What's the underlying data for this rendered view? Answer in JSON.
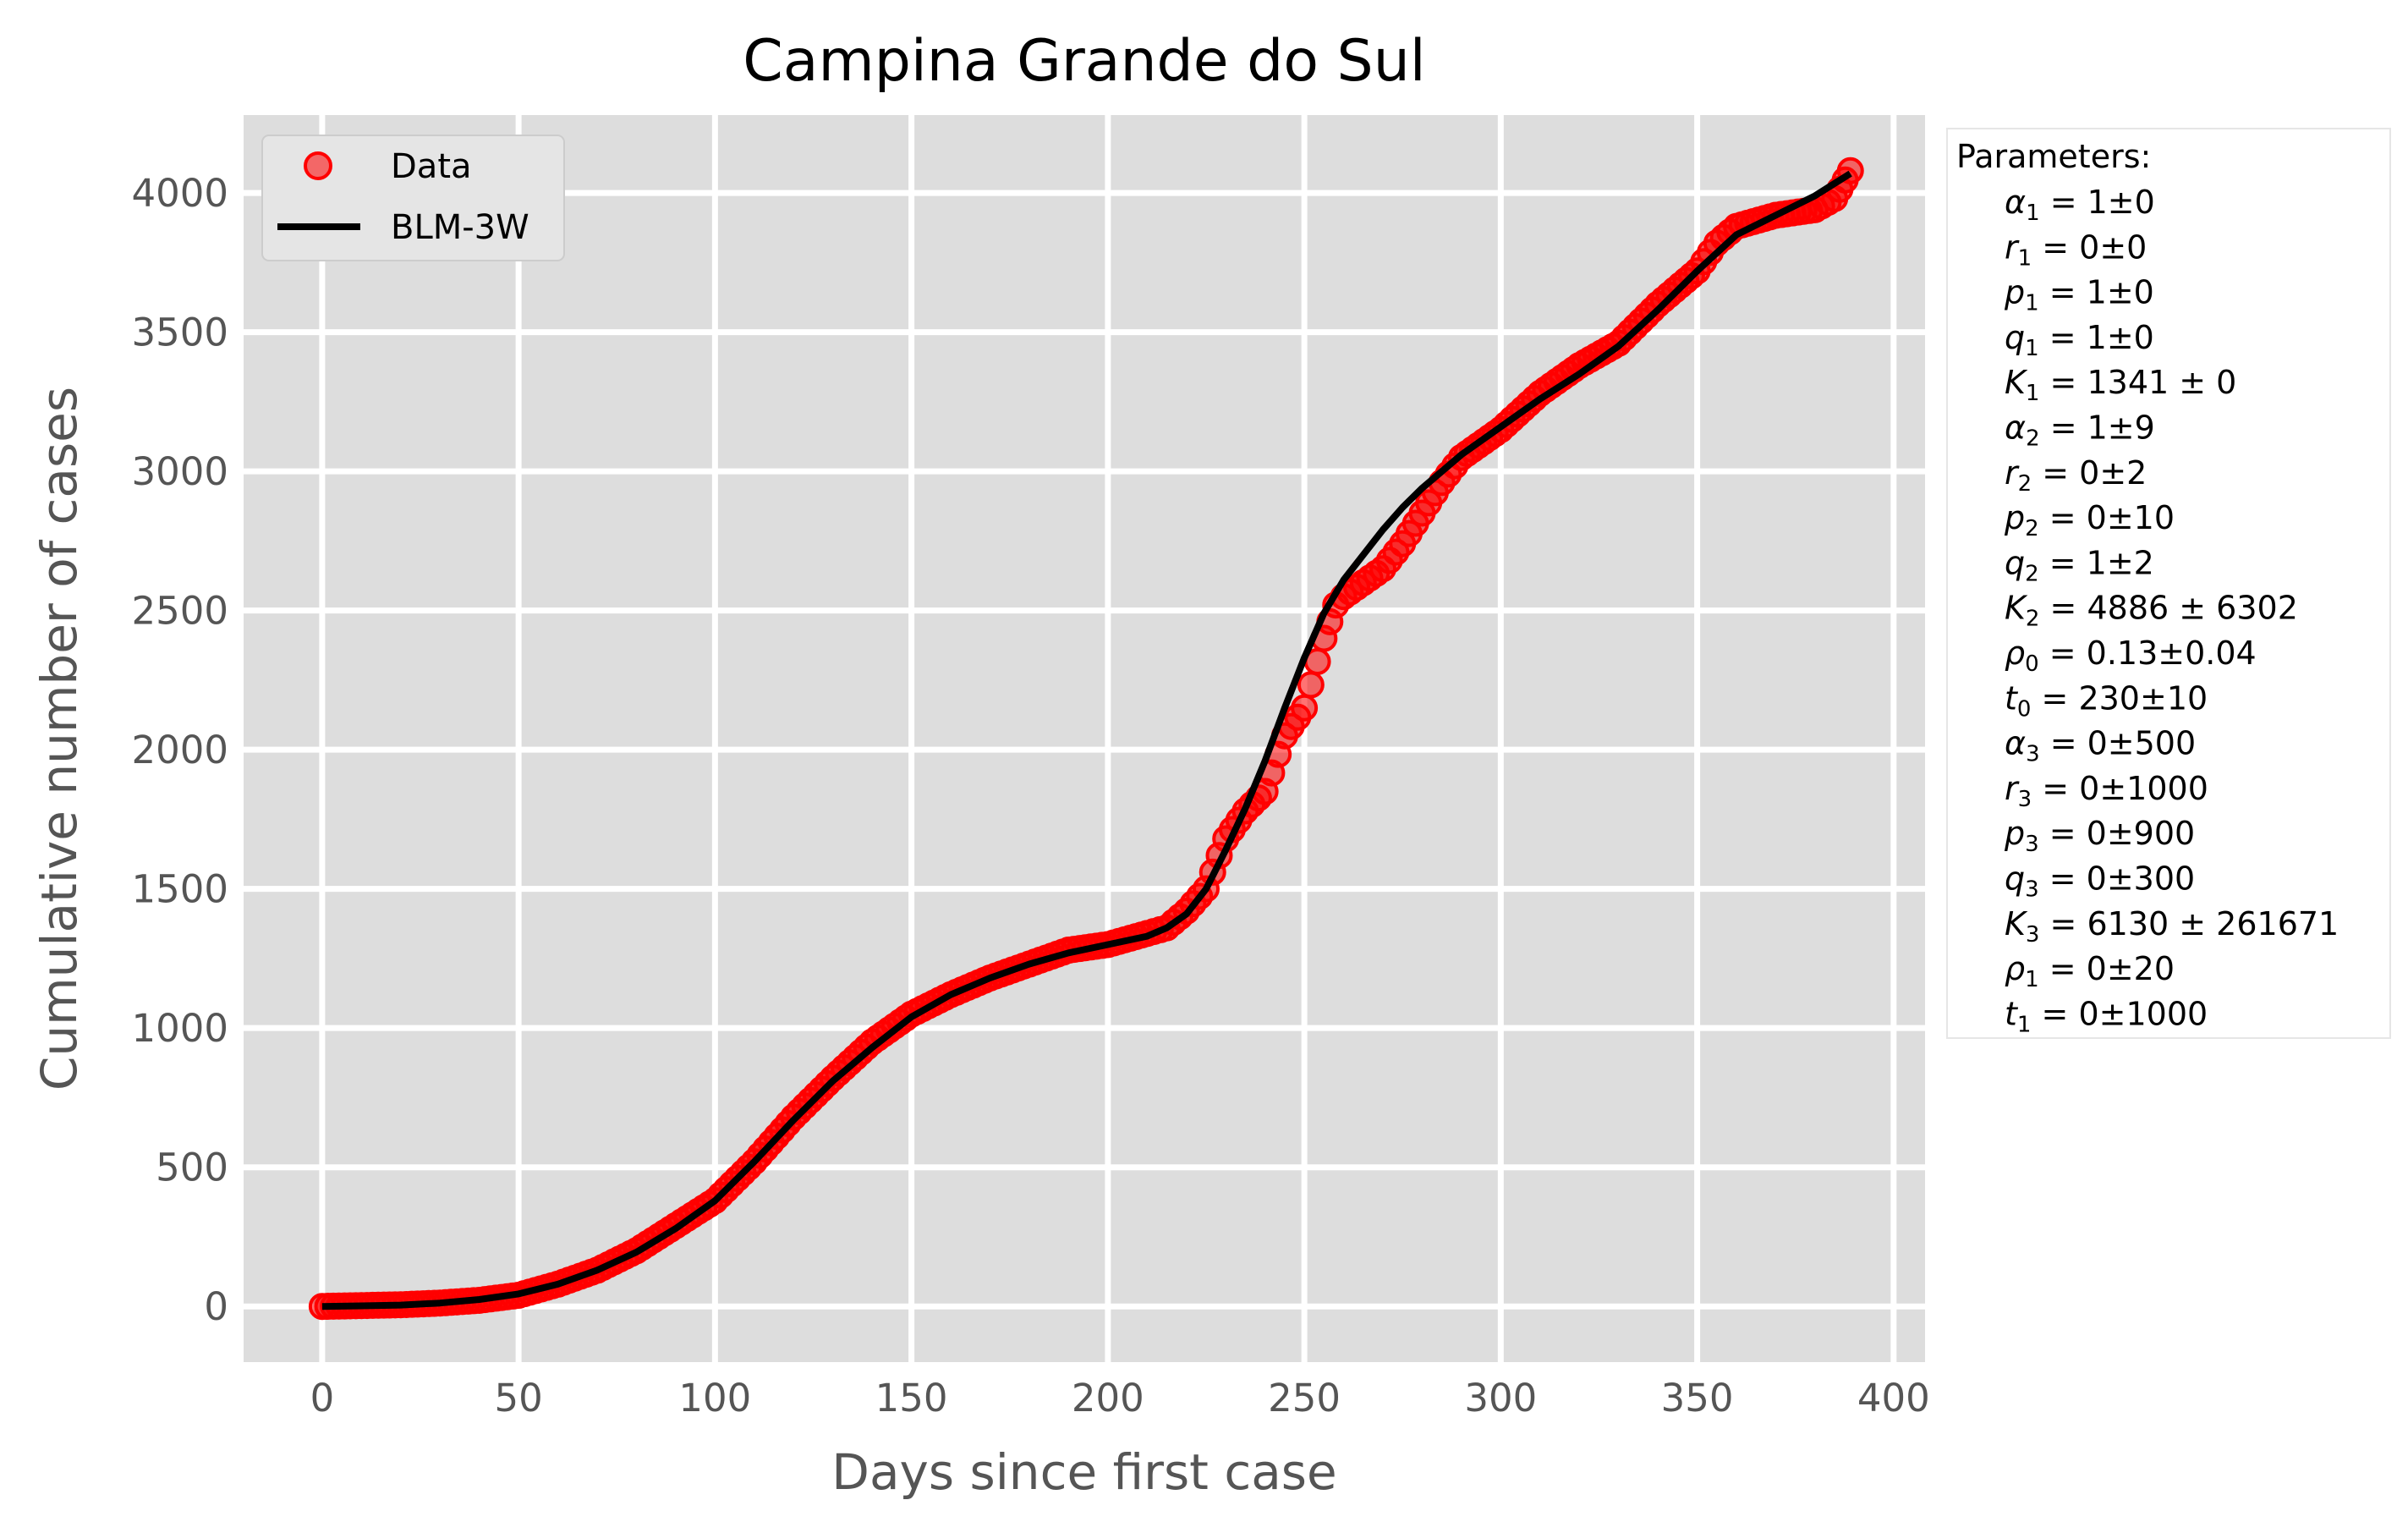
{
  "chart_data": {
    "type": "scatter",
    "title": "Campina Grande do Sul",
    "xlabel": "Days since first case",
    "ylabel": "Cumulative  number of cases",
    "xlim": [
      -20,
      408
    ],
    "ylim": [
      -200,
      4280
    ],
    "xticks": [
      0,
      50,
      100,
      150,
      200,
      250,
      300,
      350,
      400
    ],
    "yticks": [
      0,
      500,
      1000,
      1500,
      2000,
      2500,
      3000,
      3500,
      4000
    ],
    "grid": true,
    "legend": {
      "position": "top-left",
      "entries": [
        "Data",
        "BLM-3W"
      ]
    },
    "colors": {
      "data": "#ff0000",
      "fit": "#000000",
      "panel": "#dddddd",
      "grid": "#ffffff"
    },
    "series": [
      {
        "name": "Data",
        "style": "markers",
        "x": [
          0,
          10,
          20,
          30,
          40,
          50,
          60,
          70,
          80,
          90,
          100,
          110,
          120,
          130,
          140,
          150,
          160,
          170,
          180,
          190,
          200,
          210,
          215,
          220,
          225,
          230,
          235,
          240,
          245,
          250,
          255,
          258,
          260,
          265,
          270,
          275,
          280,
          285,
          290,
          300,
          310,
          320,
          330,
          340,
          350,
          355,
          360,
          370,
          380,
          385,
          389
        ],
        "y": [
          0,
          3,
          6,
          12,
          22,
          40,
          80,
          130,
          200,
          290,
          380,
          520,
          680,
          820,
          950,
          1050,
          1120,
          1180,
          1230,
          1280,
          1300,
          1340,
          1360,
          1420,
          1500,
          1680,
          1780,
          1850,
          2050,
          2150,
          2400,
          2520,
          2550,
          2600,
          2650,
          2740,
          2850,
          2960,
          3050,
          3150,
          3280,
          3380,
          3460,
          3600,
          3720,
          3820,
          3880,
          3920,
          3940,
          3980,
          4080
        ]
      },
      {
        "name": "BLM-3W",
        "style": "line",
        "x": [
          0,
          10,
          20,
          30,
          40,
          50,
          60,
          70,
          80,
          90,
          100,
          110,
          120,
          130,
          140,
          150,
          160,
          170,
          180,
          190,
          200,
          210,
          215,
          220,
          225,
          230,
          235,
          240,
          245,
          250,
          255,
          260,
          265,
          270,
          275,
          280,
          290,
          300,
          310,
          320,
          330,
          340,
          350,
          360,
          370,
          380,
          389
        ],
        "y": [
          0,
          2,
          5,
          12,
          25,
          45,
          80,
          130,
          195,
          280,
          380,
          520,
          670,
          810,
          930,
          1040,
          1120,
          1180,
          1230,
          1270,
          1300,
          1330,
          1360,
          1410,
          1500,
          1640,
          1790,
          1960,
          2150,
          2330,
          2490,
          2610,
          2700,
          2790,
          2870,
          2940,
          3060,
          3160,
          3260,
          3350,
          3450,
          3580,
          3720,
          3850,
          3920,
          3990,
          4070
        ]
      }
    ],
    "parameters": {
      "heading": "Parameters:",
      "lines": [
        {
          "sym": "α",
          "sub": "1",
          "val": " = 1±0"
        },
        {
          "sym": "r",
          "sub": "1",
          "val": " = 0±0"
        },
        {
          "sym": "p",
          "sub": "1",
          "val": " = 1±0"
        },
        {
          "sym": "q",
          "sub": "1",
          "val": " = 1±0"
        },
        {
          "sym": "K",
          "sub": "1",
          "val": " = 1341 ± 0"
        },
        {
          "sym": "α",
          "sub": "2",
          "val": " = 1±9"
        },
        {
          "sym": "r",
          "sub": "2",
          "val": " = 0±2"
        },
        {
          "sym": "p",
          "sub": "2",
          "val": " = 0±10"
        },
        {
          "sym": "q",
          "sub": "2",
          "val": " = 1±2"
        },
        {
          "sym": "K",
          "sub": "2",
          "val": " = 4886 ± 6302"
        },
        {
          "sym": "ρ",
          "sub": "0",
          "val": " = 0.13±0.04"
        },
        {
          "sym": "t",
          "sub": "0",
          "val": " = 230±10"
        },
        {
          "sym": "α",
          "sub": "3",
          "val": " = 0±500"
        },
        {
          "sym": "r",
          "sub": "3",
          "val": " = 0±1000"
        },
        {
          "sym": "p",
          "sub": "3",
          "val": " = 0±900"
        },
        {
          "sym": "q",
          "sub": "3",
          "val": " = 0±300"
        },
        {
          "sym": "K",
          "sub": "3",
          "val": " = 6130 ± 261671"
        },
        {
          "sym": "ρ",
          "sub": "1",
          "val": " = 0±20"
        },
        {
          "sym": "t",
          "sub": "1",
          "val": " = 0±1000"
        }
      ]
    }
  }
}
